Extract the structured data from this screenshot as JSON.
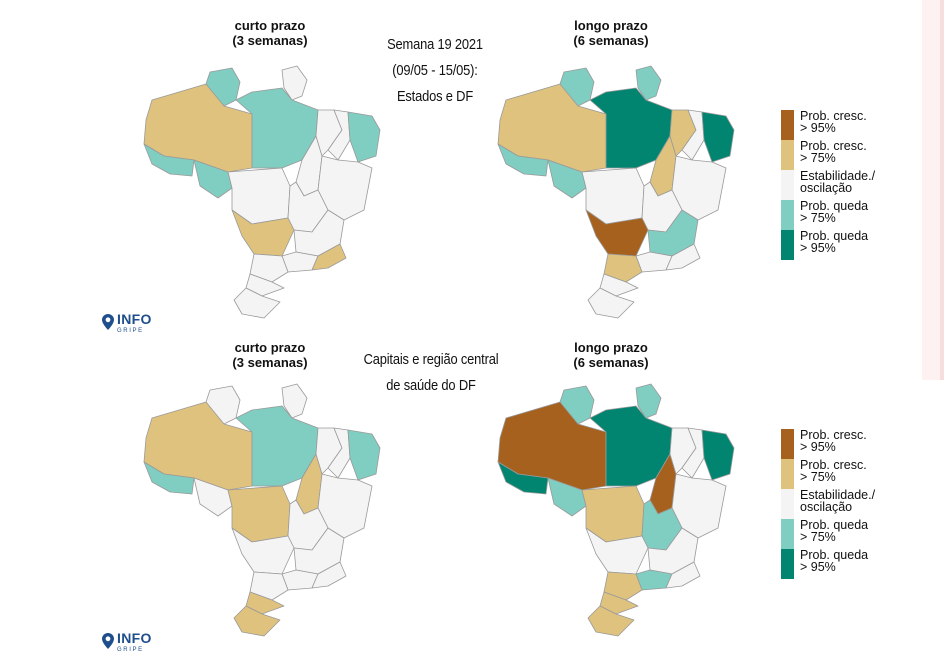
{
  "maps": [
    {
      "id": "states-short",
      "title_line1": "curto prazo",
      "title_line2": "(3 semanas)",
      "regions": {
        "am": "moderate-increase",
        "rr": "moderate-decrease",
        "pa": "moderate-decrease",
        "ap": "stable",
        "ac": "moderate-decrease",
        "ro": "moderate-decrease",
        "mt": "stable",
        "to": "stable",
        "ma": "stable",
        "pi": "stable",
        "ne_coast": "moderate-decrease",
        "ba": "stable",
        "go": "stable",
        "ms": "moderate-increase",
        "mg": "stable",
        "sp": "stable",
        "rj": "moderate-increase",
        "pr": "stable",
        "sc": "stable",
        "rs": "stable"
      }
    },
    {
      "id": "states-long",
      "title_line1": "longo prazo",
      "title_line2": "(6 semanas)",
      "regions": {
        "am": "moderate-increase",
        "rr": "moderate-decrease",
        "pa": "strong-decrease",
        "ap": "moderate-decrease",
        "ac": "moderate-decrease",
        "ro": "moderate-decrease",
        "mt": "stable",
        "to": "moderate-increase",
        "ma": "moderate-increase",
        "pi": "stable",
        "ne_coast": "strong-decrease",
        "ba": "stable",
        "go": "stable",
        "ms": "strong-increase",
        "mg": "moderate-decrease",
        "sp": "stable",
        "rj": "stable",
        "pr": "moderate-increase",
        "sc": "stable",
        "rs": "stable"
      }
    },
    {
      "id": "capitals-short",
      "title_line1": "curto prazo",
      "title_line2": "(3 semanas)",
      "regions": {
        "am": "moderate-increase",
        "rr": "stable",
        "pa": "moderate-decrease",
        "ap": "stable",
        "ac": "moderate-decrease",
        "ro": "stable",
        "mt": "moderate-increase",
        "to": "moderate-increase",
        "ma": "stable",
        "pi": "stable",
        "ne_coast": "moderate-decrease",
        "ba": "stable",
        "go": "stable",
        "ms": "stable",
        "mg": "stable",
        "sp": "stable",
        "rj": "stable",
        "pr": "stable",
        "sc": "moderate-increase",
        "rs": "moderate-increase"
      }
    },
    {
      "id": "capitals-long",
      "title_line1": "longo prazo",
      "title_line2": "(6 semanas)",
      "regions": {
        "am": "strong-increase",
        "rr": "moderate-decrease",
        "pa": "strong-decrease",
        "ap": "moderate-decrease",
        "ac": "strong-decrease",
        "ro": "moderate-decrease",
        "mt": "moderate-increase",
        "to": "strong-increase",
        "ma": "stable",
        "pi": "stable",
        "ne_coast": "strong-decrease",
        "ba": "stable",
        "go": "moderate-decrease",
        "ms": "stable",
        "mg": "stable",
        "sp": "moderate-decrease",
        "rj": "stable",
        "pr": "moderate-increase",
        "sc": "moderate-increase",
        "rs": "moderate-increase"
      }
    }
  ],
  "headers": {
    "states": [
      "Semana 19 2021",
      "(09/05 - 15/05):",
      "Estados e DF"
    ],
    "capitals": [
      "Capitais e região central",
      "de saúde do DF"
    ]
  },
  "legend": [
    {
      "key": "strong-increase",
      "line1": "Prob. cresc.",
      "line2": "> 95%",
      "color": "#a5611d"
    },
    {
      "key": "moderate-increase",
      "line1": "Prob. cresc.",
      "line2": "> 75%",
      "color": "#dfc27d"
    },
    {
      "key": "stable",
      "line1": "Estabilidade./",
      "line2": "oscilação",
      "color": "#f4f4f4"
    },
    {
      "key": "moderate-decrease",
      "line1": "Prob. queda",
      "line2": "> 75%",
      "color": "#80cdc1"
    },
    {
      "key": "strong-decrease",
      "line1": "Prob. queda",
      "line2": "> 95%",
      "color": "#018571"
    }
  ],
  "logo": {
    "main": "INFO",
    "sub": "GRIPE",
    "color": "#1f4e8c"
  }
}
